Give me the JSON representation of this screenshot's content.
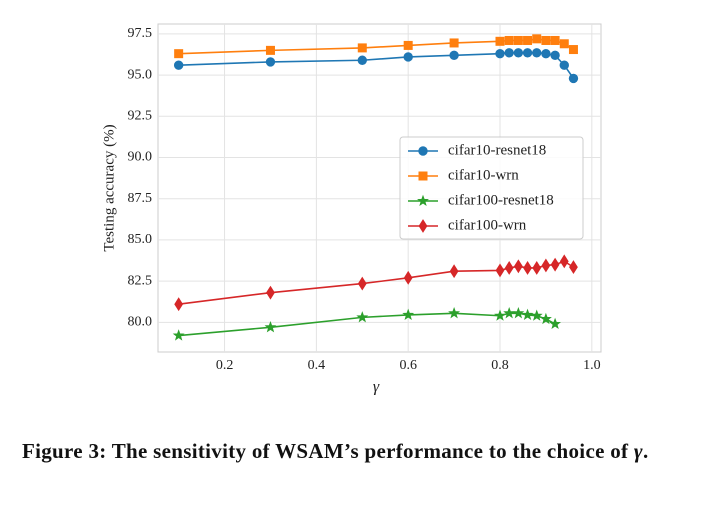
{
  "chart_data": {
    "type": "line",
    "x": [
      0.1,
      0.3,
      0.5,
      0.6,
      0.7,
      0.8,
      0.82,
      0.84,
      0.86,
      0.88,
      0.9,
      0.92,
      0.94,
      0.96
    ],
    "series": [
      {
        "name": "cifar10-resnet18",
        "color": "#1f77b4",
        "marker": "circle",
        "values": [
          95.6,
          95.8,
          95.9,
          96.1,
          96.2,
          96.3,
          96.35,
          96.35,
          96.35,
          96.35,
          96.3,
          96.2,
          95.6,
          94.8
        ]
      },
      {
        "name": "cifar10-wrn",
        "color": "#ff7f0e",
        "marker": "square",
        "values": [
          96.3,
          96.5,
          96.65,
          96.8,
          96.95,
          97.05,
          97.1,
          97.1,
          97.1,
          97.2,
          97.1,
          97.1,
          96.9,
          96.55
        ]
      },
      {
        "name": "cifar100-resnet18",
        "color": "#2ca02c",
        "marker": "star",
        "values": [
          79.2,
          79.7,
          80.3,
          80.45,
          80.55,
          80.4,
          80.55,
          80.55,
          80.45,
          80.4,
          80.2,
          79.9,
          null,
          null
        ]
      },
      {
        "name": "cifar100-wrn",
        "color": "#d62728",
        "marker": "diamond",
        "values": [
          81.1,
          81.8,
          82.35,
          82.7,
          83.1,
          83.15,
          83.3,
          83.4,
          83.3,
          83.3,
          83.45,
          83.5,
          83.7,
          83.35
        ]
      }
    ],
    "xlabel": "γ",
    "ylabel": "Testing accuracy (%)",
    "xlim": [
      0.055,
      1.02
    ],
    "ylim": [
      78.2,
      98.1
    ],
    "xticks": [
      0.2,
      0.4,
      0.6,
      0.8,
      {
        "value": 1.0,
        "label": "1.0"
      }
    ],
    "yticks": [
      {
        "value": 80,
        "label": "80.0"
      },
      82.5,
      {
        "value": 85,
        "label": "85.0"
      },
      87.5,
      {
        "value": 90,
        "label": "90.0"
      },
      92.5,
      {
        "value": 95,
        "label": "95.0"
      },
      97.5
    ],
    "grid": true,
    "legend": "center right"
  },
  "caption": [
    "Figure 3: The sensitivity of WSAM’s performance to the choice of ",
    "γ",
    "."
  ]
}
